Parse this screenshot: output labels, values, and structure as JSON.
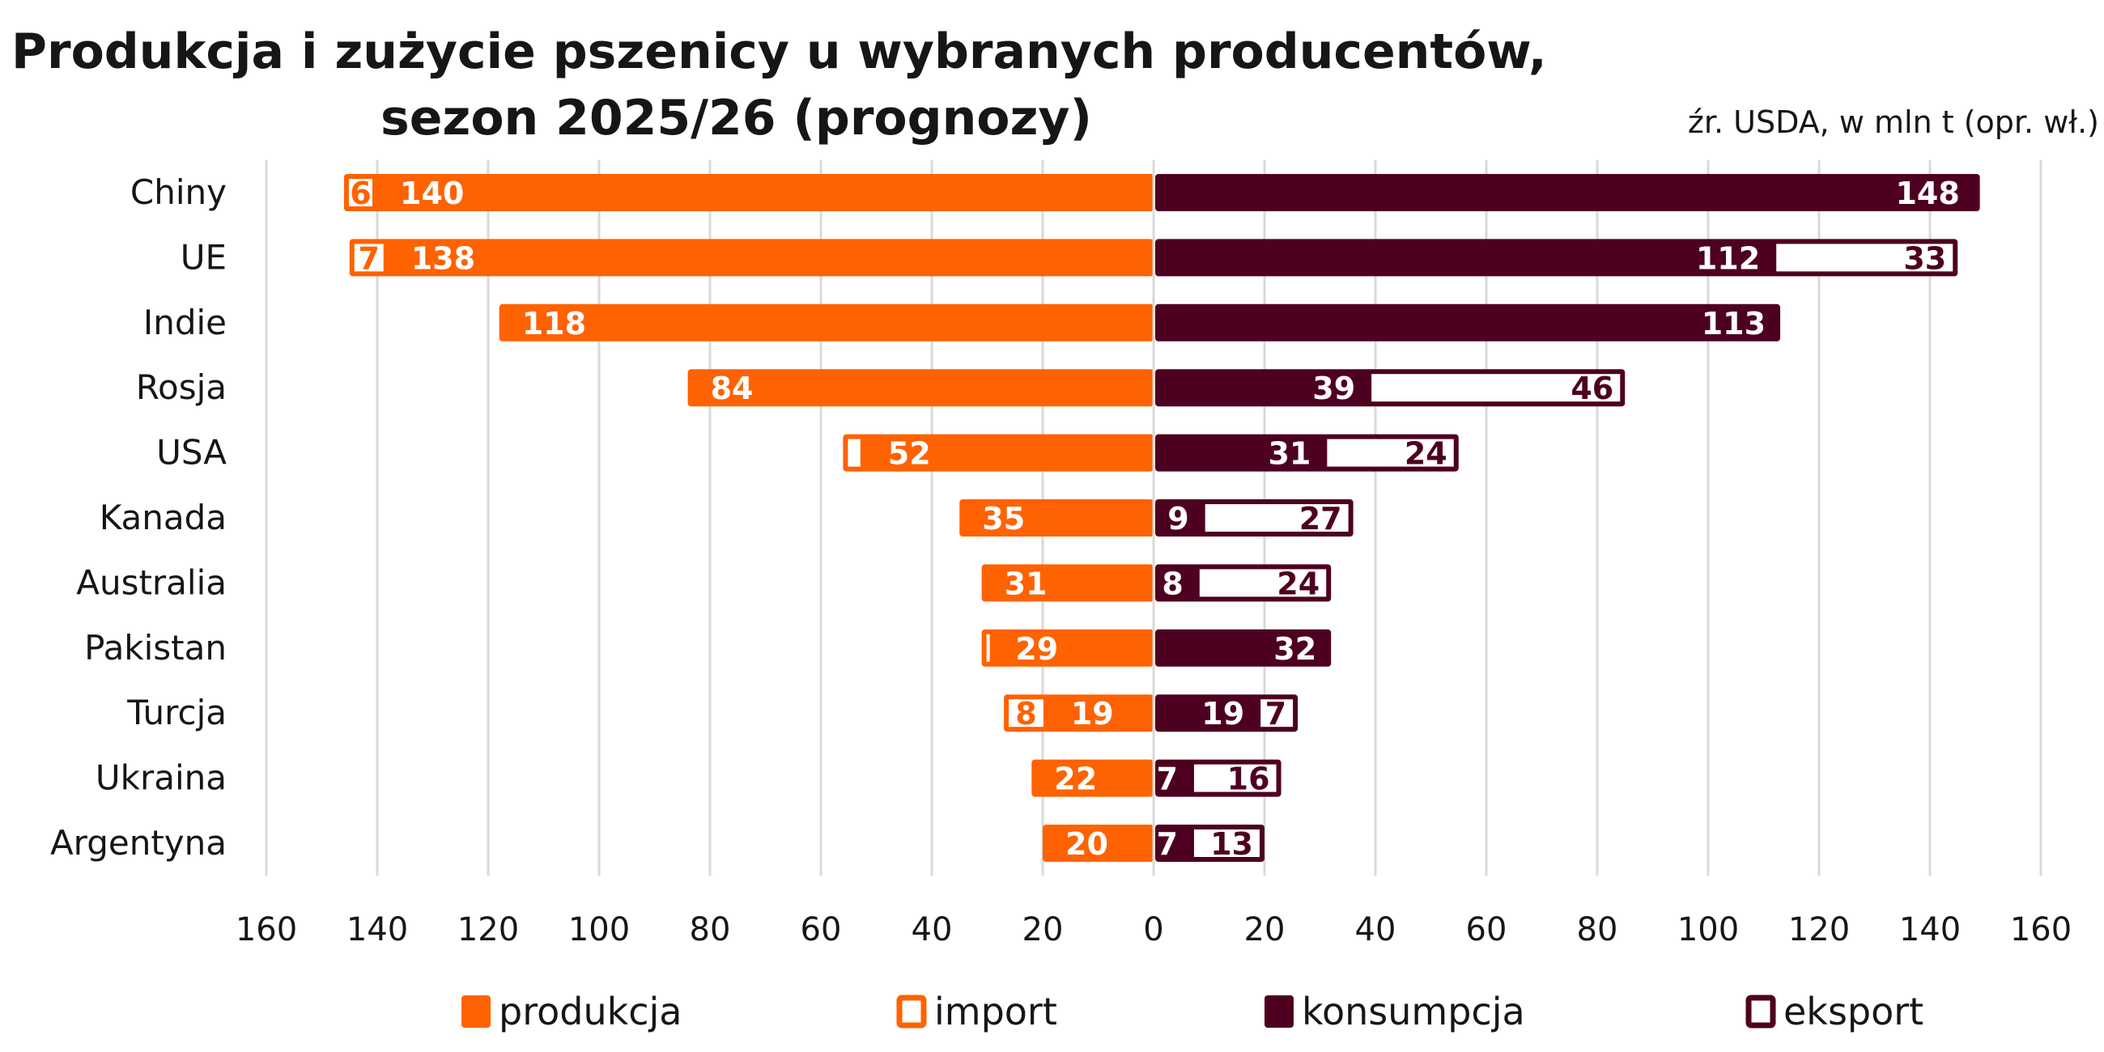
{
  "chart_data": {
    "type": "bar",
    "orientation": "horizontal-diverging-stacked",
    "title": [
      "Produkcja i zużycie pszenicy u wybranych producentów,",
      "sezon 2025/26 (prognozy)"
    ],
    "source_note": "źr. USDA, w mln t (opr. wł.)",
    "xlabel": "",
    "ylabel": "",
    "xlim": [
      -160,
      160
    ],
    "x_ticks": [
      160,
      140,
      120,
      100,
      80,
      60,
      40,
      20,
      0,
      20,
      40,
      60,
      80,
      100,
      120,
      140,
      160
    ],
    "grid": true,
    "legend_position": "bottom",
    "categories": [
      "Chiny",
      "UE",
      "Indie",
      "Rosja",
      "USA",
      "Kanada",
      "Australia",
      "Pakistan",
      "Turcja",
      "Ukraina",
      "Argentyna"
    ],
    "series": [
      {
        "name": "produkcja",
        "side": "left",
        "style": "filled",
        "color": "#FF6200",
        "values": [
          140,
          138,
          118,
          84,
          52,
          35,
          31,
          29,
          19,
          22,
          20
        ],
        "labels": [
          "140",
          "138",
          "118",
          "84",
          "52",
          "35",
          "31",
          "29",
          "19",
          "22",
          "20"
        ]
      },
      {
        "name": "import",
        "side": "left",
        "style": "outline",
        "color": "#FF6200",
        "values": [
          6,
          7,
          0,
          0,
          4,
          0,
          0,
          2,
          8,
          0,
          0
        ],
        "labels": [
          "6",
          "7",
          "",
          "",
          "",
          "",
          "",
          "",
          "8",
          "",
          ""
        ]
      },
      {
        "name": "konsumpcja",
        "side": "right",
        "style": "filled",
        "color": "#4E0020",
        "values": [
          148,
          112,
          113,
          39,
          31,
          9,
          8,
          32,
          19,
          7,
          7
        ],
        "labels": [
          "148",
          "112",
          "113",
          "39",
          "31",
          "9",
          "8",
          "32",
          "19",
          "7",
          "7"
        ]
      },
      {
        "name": "eksport",
        "side": "right",
        "style": "outline",
        "color": "#4E0020",
        "values": [
          1,
          33,
          0,
          46,
          24,
          27,
          24,
          0,
          7,
          16,
          13
        ],
        "labels": [
          "",
          "33",
          "",
          "46",
          "24",
          "27",
          "24",
          "",
          "7",
          "16",
          "13"
        ]
      }
    ]
  },
  "legend": [
    {
      "label": "produkcja",
      "style": "filled",
      "color": "#FF6200"
    },
    {
      "label": "import",
      "style": "outline",
      "color": "#FF6200"
    },
    {
      "label": "konsumpcja",
      "style": "filled",
      "color": "#4E0020"
    },
    {
      "label": "eksport",
      "style": "outline",
      "color": "#4E0020"
    }
  ]
}
